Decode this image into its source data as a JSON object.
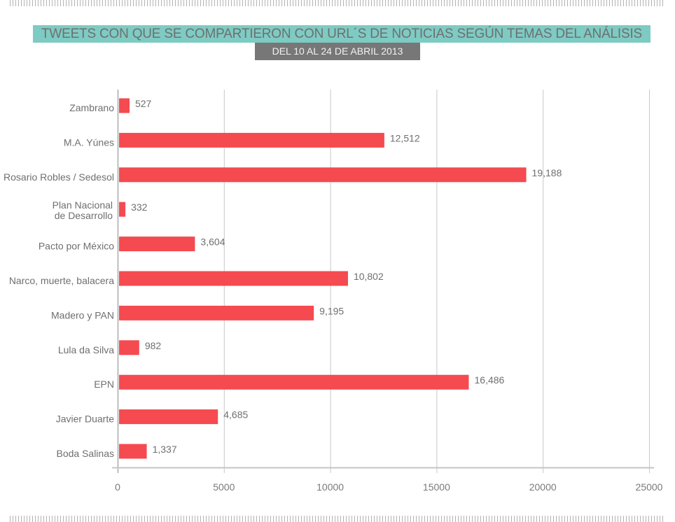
{
  "header": {
    "title": "TWEETS CON QUE SE COMPARTIERON CON URL´S DE NOTICIAS SEGÚN TEMAS DEL ANÁLISIS",
    "subtitle": "DEL 10 AL 24 DE ABRIL 2013"
  },
  "colors": {
    "bar": "#f44a50",
    "title_bg": "#7ecbc3",
    "subtitle_bg": "#777777",
    "grid": "#c8c8c8",
    "text": "#6f6f6f"
  },
  "chart_data": {
    "type": "bar",
    "orientation": "horizontal",
    "title": "TWEETS CON QUE SE COMPARTIERON CON URL´S DE NOTICIAS SEGÚN TEMAS DEL ANÁLISIS",
    "subtitle": "DEL 10 AL 24 DE ABRIL 2013",
    "categories": [
      [
        "Zambrano"
      ],
      [
        "M.A. Yúnes"
      ],
      [
        "Rosario Robles / Sedesol"
      ],
      [
        "Plan Nacional",
        "de Desarrollo"
      ],
      [
        "Pacto por México"
      ],
      [
        "Narco, muerte, balacera"
      ],
      [
        "Madero y PAN"
      ],
      [
        "Lula da Silva"
      ],
      [
        "EPN"
      ],
      [
        "Javier Duarte"
      ],
      [
        "Boda Salinas"
      ]
    ],
    "values": [
      527,
      12512,
      19188,
      332,
      3604,
      10802,
      9195,
      982,
      16486,
      4685,
      1337
    ],
    "value_labels": [
      "527",
      "12,512",
      "19,188",
      "332",
      "3,604",
      "10,802",
      "9,195",
      "982",
      "16,486",
      "4,685",
      "1,337"
    ],
    "xlim": [
      0,
      25000
    ],
    "xticks": [
      0,
      5000,
      10000,
      15000,
      20000,
      25000
    ],
    "xtick_labels": [
      "0",
      "5000",
      "10000",
      "15000",
      "20000",
      "25000"
    ],
    "xlabel": "",
    "ylabel": "",
    "grid": true,
    "legend": "none"
  }
}
